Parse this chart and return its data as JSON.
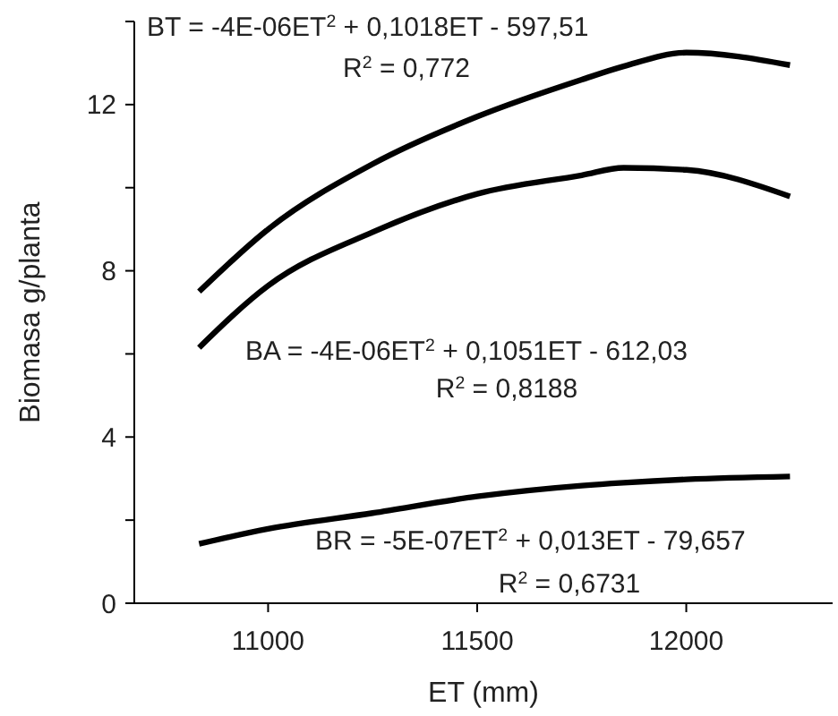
{
  "chart_data": {
    "type": "line",
    "xlabel": "ET (mm)",
    "ylabel": "Biomasa g/planta",
    "x": [
      10835,
      11000,
      11250,
      11500,
      11750,
      11850,
      12000,
      12248
    ],
    "series": [
      {
        "color": "#000000",
        "values": [
          7.5,
          9.0,
          10.57,
          11.71,
          12.6,
          12.92,
          13.25,
          12.95
        ]
      },
      {
        "color": "#000000",
        "values": [
          6.15,
          7.64,
          8.93,
          9.85,
          10.3,
          10.48,
          10.43,
          9.79
        ]
      },
      {
        "color": "#000000",
        "values": [
          1.43,
          1.79,
          2.17,
          2.57,
          2.83,
          2.9,
          2.98,
          3.05
        ]
      }
    ],
    "xlim": [
      10680,
      12350
    ],
    "ylim": [
      0,
      14
    ],
    "xticks": [
      11000,
      11500,
      12000
    ],
    "yticks": [
      0,
      {
        "value": 2,
        "label": null
      },
      4,
      {
        "value": 6,
        "label": null
      },
      8,
      {
        "value": 10,
        "label": null
      },
      12,
      {
        "value": 14,
        "label": null
      }
    ],
    "grid": false,
    "marker": "none",
    "line_style": "solid",
    "annotations": [
      "BT = -4E-06ET$^{2}$ + 0,1018ET - 597,51",
      "R$^{2}$ = 0,772",
      "BA = -4E-06ET$^{2}$ + 0,1051ET - 612,03",
      "R$^{2}$ = 0,8188",
      "BR = -5E-07ET$^{2}$ + 0,013ET - 79,657",
      "R$^{2}$ = 0,6731"
    ]
  }
}
